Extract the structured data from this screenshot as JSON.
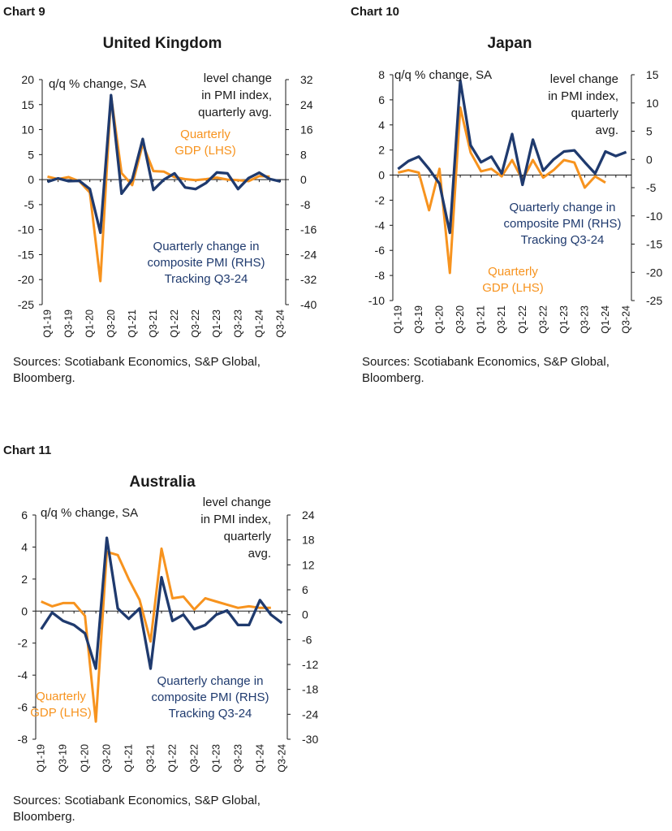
{
  "colors": {
    "gdp": "#F7931E",
    "pmi": "#1F3A6E",
    "axis": "#1a1a1a"
  },
  "x_labels": [
    "Q1-19",
    "Q3-19",
    "Q1-20",
    "Q3-20",
    "Q1-21",
    "Q3-21",
    "Q1-22",
    "Q3-22",
    "Q1-23",
    "Q3-23",
    "Q1-24",
    "Q3-24"
  ],
  "sources": [
    "Sources: Scotiabank Economics, S&P Global,",
    "Bloomberg."
  ],
  "chart_data": [
    {
      "chart_label": "Chart 9",
      "type": "line",
      "title": "United Kingdom",
      "ylabel_left": "q/q % change, SA",
      "ylabel_right": [
        "level change",
        "in PMI index,",
        "quarterly avg."
      ],
      "ylim_left": [
        -25,
        20
      ],
      "yticks_left": [
        "20",
        "15",
        "10",
        "5",
        "0",
        "-5",
        "-10",
        "-15",
        "-20",
        "-25"
      ],
      "ylim_right": [
        -40,
        32
      ],
      "yticks_right": [
        "32",
        "24",
        "16",
        "8",
        "0",
        "-8",
        "-16",
        "-24",
        "-32",
        "-40"
      ],
      "series": [
        {
          "name": "Quarterly GDP (LHS)",
          "label_lines": [
            "Quarterly",
            "GDP (LHS)"
          ],
          "axis": "left",
          "values": [
            0.6,
            0.1,
            0.5,
            -0.3,
            -2.6,
            -20.3,
            16.8,
            1.3,
            -1.1,
            7.1,
            1.7,
            1.6,
            0.5,
            0.1,
            -0.1,
            0.1,
            0.4,
            0.0,
            -0.1,
            -0.3,
            0.7,
            0.6
          ]
        },
        {
          "name": "Quarterly change in composite PMI (RHS) Tracking Q3-24",
          "label_lines": [
            "Quarterly change in",
            "composite PMI (RHS)",
            "Tracking Q3-24"
          ],
          "axis": "right",
          "values": [
            -0.7,
            0.4,
            -0.5,
            -0.4,
            -3.0,
            -17.0,
            27.0,
            -4.5,
            0.0,
            13.0,
            -3.3,
            0.0,
            2.0,
            -2.5,
            -3.0,
            -1.0,
            2.3,
            2.0,
            -3.0,
            0.5,
            2.2,
            0.2,
            -0.6
          ]
        }
      ]
    },
    {
      "chart_label": "Chart 10",
      "type": "line",
      "title": "Japan",
      "ylabel_left": "q/q % change, SA",
      "ylabel_right": [
        "level change",
        "in PMI index,",
        "quarterly",
        "avg."
      ],
      "ylim_left": [
        -10,
        8
      ],
      "yticks_left": [
        "8",
        "6",
        "4",
        "2",
        "0",
        "-2",
        "-4",
        "-6",
        "-8",
        "-10"
      ],
      "ylim_right": [
        -25,
        15
      ],
      "yticks_right": [
        "15",
        "10",
        "5",
        "0",
        "-5",
        "-10",
        "-15",
        "-20",
        "-25"
      ],
      "series": [
        {
          "name": "Quarterly GDP (LHS)",
          "label_lines": [
            "Quarterly",
            "GDP (LHS)"
          ],
          "axis": "left",
          "values": [
            0.2,
            0.4,
            0.2,
            -2.8,
            0.5,
            -7.8,
            5.4,
            1.8,
            0.3,
            0.5,
            -0.1,
            1.2,
            -0.4,
            1.2,
            -0.2,
            0.4,
            1.2,
            1.0,
            -1.0,
            -0.1,
            -0.6
          ]
        },
        {
          "name": "Quarterly change in composite PMI (RHS) Tracking Q3-24",
          "label_lines": [
            "Quarterly change in",
            "composite PMI (RHS)",
            "Tracking Q3-24"
          ],
          "axis": "right",
          "values": [
            -1.7,
            -0.3,
            0.5,
            -1.7,
            -4.3,
            -13.0,
            14.0,
            2.5,
            -0.5,
            0.5,
            -2.5,
            4.5,
            -4.5,
            3.5,
            -2.0,
            0.0,
            1.4,
            1.6,
            -0.5,
            -2.5,
            1.4,
            0.6,
            1.3
          ]
        }
      ]
    },
    {
      "chart_label": "Chart 11",
      "type": "line",
      "title": "Australia",
      "ylabel_left": "q/q % change, SA",
      "ylabel_right": [
        "level change",
        "in PMI index,",
        "quarterly",
        "avg."
      ],
      "ylim_left": [
        -8,
        6
      ],
      "yticks_left": [
        "6",
        "4",
        "2",
        "0",
        "-2",
        "-4",
        "-6",
        "-8"
      ],
      "ylim_right": [
        -30,
        24
      ],
      "yticks_right": [
        "24",
        "18",
        "12",
        "6",
        "0",
        "-6",
        "-12",
        "-18",
        "-24",
        "-30"
      ],
      "series": [
        {
          "name": "Quarterly GDP (LHS)",
          "label_lines": [
            "Quarterly",
            "GDP (LHS)"
          ],
          "axis": "left",
          "values": [
            0.6,
            0.3,
            0.5,
            0.5,
            -0.3,
            -6.9,
            3.7,
            3.5,
            2.0,
            0.7,
            -1.9,
            3.9,
            0.8,
            0.9,
            0.1,
            0.8,
            0.6,
            0.4,
            0.2,
            0.3,
            0.2,
            0.2
          ]
        },
        {
          "name": "Quarterly change in composite PMI (RHS) Tracking Q3-24",
          "label_lines": [
            "Quarterly change in",
            "composite PMI (RHS)",
            "Tracking Q3-24"
          ],
          "axis": "right",
          "values": [
            -3.5,
            0.5,
            -1.5,
            -2.5,
            -4.5,
            -13.0,
            18.5,
            1.5,
            -1.0,
            1.5,
            -13.0,
            9.0,
            -1.5,
            0.0,
            -3.5,
            -2.5,
            0.0,
            1.0,
            -2.5,
            -2.5,
            3.5,
            0.0,
            -2.0
          ]
        }
      ]
    }
  ]
}
